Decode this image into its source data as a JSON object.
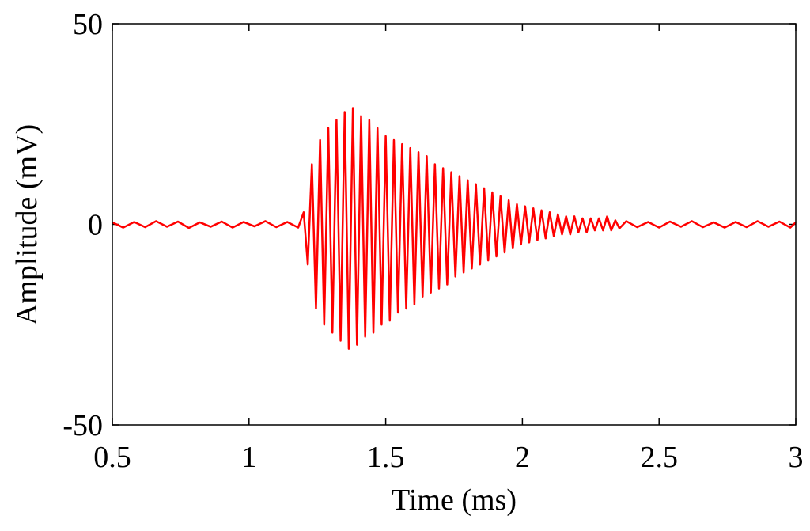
{
  "chart_data": {
    "type": "line",
    "x_label": "Time (ms)",
    "y_label": "Amplitude (mV)",
    "color": "#ff0000",
    "xlim": [
      0.5,
      3
    ],
    "xticks": [
      0.5,
      1,
      1.5,
      2,
      2.5,
      3
    ],
    "ylim": [
      -50,
      50
    ],
    "yticks": [
      -50,
      0,
      50
    ],
    "x": [
      0.5,
      0.54,
      0.58,
      0.62,
      0.66,
      0.7,
      0.74,
      0.78,
      0.82,
      0.86,
      0.9,
      0.94,
      0.98,
      1.02,
      1.06,
      1.1,
      1.14,
      1.18,
      1.2,
      1.215,
      1.23,
      1.245,
      1.26,
      1.275,
      1.29,
      1.305,
      1.32,
      1.335,
      1.35,
      1.365,
      1.38,
      1.395,
      1.41,
      1.425,
      1.44,
      1.455,
      1.47,
      1.485,
      1.5,
      1.515,
      1.53,
      1.545,
      1.56,
      1.575,
      1.59,
      1.605,
      1.62,
      1.635,
      1.65,
      1.665,
      1.68,
      1.695,
      1.71,
      1.725,
      1.74,
      1.755,
      1.77,
      1.785,
      1.8,
      1.815,
      1.83,
      1.845,
      1.86,
      1.875,
      1.89,
      1.905,
      1.92,
      1.935,
      1.95,
      1.965,
      1.98,
      1.995,
      2.01,
      2.025,
      2.04,
      2.055,
      2.07,
      2.085,
      2.1,
      2.115,
      2.13,
      2.145,
      2.16,
      2.175,
      2.19,
      2.205,
      2.22,
      2.235,
      2.25,
      2.265,
      2.28,
      2.295,
      2.31,
      2.325,
      2.34,
      2.355,
      2.38,
      2.42,
      2.46,
      2.5,
      2.54,
      2.58,
      2.62,
      2.66,
      2.7,
      2.74,
      2.78,
      2.82,
      2.86,
      2.9,
      2.94,
      2.98,
      3
    ],
    "values": [
      0.5,
      -0.8,
      0.6,
      -0.7,
      0.8,
      -0.6,
      0.7,
      -0.9,
      0.5,
      -0.6,
      0.7,
      -0.8,
      0.6,
      -0.5,
      0.8,
      -0.7,
      0.6,
      -0.8,
      3,
      -10,
      15,
      -21,
      21,
      -25,
      24,
      -27,
      26,
      -29,
      28,
      -31,
      29,
      -30,
      27,
      -28,
      26,
      -27,
      24,
      -25,
      22,
      -24,
      21,
      -22,
      20,
      -21,
      19,
      -20,
      18,
      -18,
      17,
      -17,
      15,
      -16,
      14,
      -15,
      13,
      -13,
      12,
      -12,
      11,
      -11,
      10,
      -10,
      9,
      -9,
      8,
      -8,
      7,
      -7,
      6,
      -6,
      5,
      -5,
      4.5,
      -4.5,
      4,
      -4,
      3.5,
      -3.5,
      3,
      -3,
      2.5,
      -2.5,
      2,
      -2.5,
      2,
      -2,
      1.5,
      -2,
      1.5,
      -1.5,
      1.5,
      -1.5,
      2,
      -1.5,
      1,
      -1,
      0.8,
      -0.7,
      0.6,
      -0.8,
      0.7,
      -0.6,
      0.8,
      -0.7,
      0.5,
      -0.8,
      0.6,
      -0.7,
      0.8,
      -0.6,
      0.7,
      -0.8,
      0.5
    ]
  }
}
